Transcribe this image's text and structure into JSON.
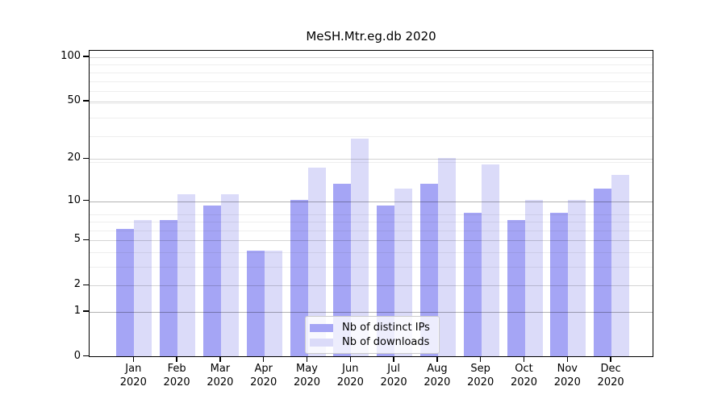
{
  "chart_data": {
    "type": "bar",
    "title": "MeSH.Mtr.eg.db 2020",
    "categories": [
      "Jan 2020",
      "Feb 2020",
      "Mar 2020",
      "Apr 2020",
      "May 2020",
      "Jun 2020",
      "Jul 2020",
      "Aug 2020",
      "Sep 2020",
      "Oct 2020",
      "Nov 2020",
      "Dec 2020"
    ],
    "series": [
      {
        "name": "Nb of distinct IPs",
        "color": "#a5a5f5",
        "values": [
          6,
          7,
          9,
          4,
          10,
          13,
          9,
          13,
          8,
          7,
          8,
          12
        ]
      },
      {
        "name": "Nb of downloads",
        "color": "#dbdbf9",
        "values": [
          7,
          11,
          11,
          4,
          17,
          27,
          12,
          20,
          18,
          10,
          10,
          15
        ]
      }
    ],
    "xlabel": "",
    "ylabel": "",
    "yscale": "log1p",
    "yticks": [
      0,
      1,
      2,
      5,
      10,
      20,
      50,
      100
    ],
    "minor_gridlines": [
      3,
      4,
      6,
      7,
      8,
      19,
      29,
      39,
      49,
      59,
      69,
      79,
      89
    ],
    "ylim": [
      0,
      112
    ],
    "grid": true,
    "gridlines_above_bars": true,
    "legend_position": "lower center",
    "frame_color": "#000000"
  }
}
